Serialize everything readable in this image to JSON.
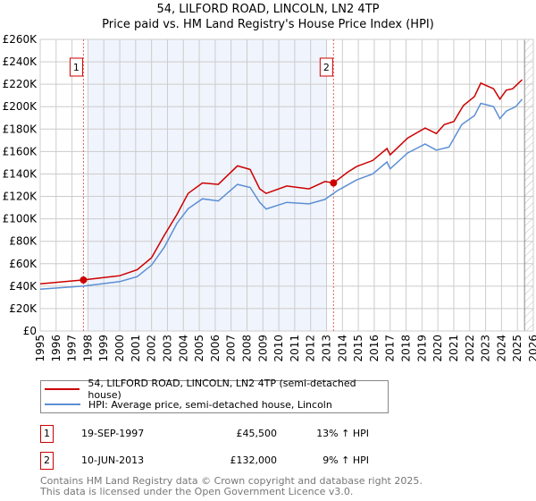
{
  "title": "54, LILFORD ROAD, LINCOLN, LN2 4TP",
  "subtitle": "Price paid vs. HM Land Registry's House Price Index (HPI)",
  "legend": [
    {
      "label": "54, LILFORD ROAD, LINCOLN, LN2 4TP (semi-detached house)",
      "color": "#cc0000"
    },
    {
      "label": "HPI: Average price, semi-detached house, Lincoln",
      "color": "#5b8fd4"
    }
  ],
  "transactions": [
    {
      "num": "1",
      "date": "19-SEP-1997",
      "price": "£45,500",
      "hpi": "13% ↑ HPI"
    },
    {
      "num": "2",
      "date": "10-JUN-2013",
      "price": "£132,000",
      "hpi": "9% ↑ HPI"
    }
  ],
  "footer": [
    "Contains HM Land Registry data © Crown copyright and database right 2025.",
    "This data is licensed under the Open Government Licence v3.0."
  ],
  "chart_data": {
    "type": "line",
    "xlim": [
      1995,
      2026
    ],
    "ylim": [
      0,
      260000
    ],
    "xticks": [
      "1995",
      "1996",
      "1997",
      "1998",
      "1999",
      "2000",
      "2001",
      "2002",
      "2003",
      "2004",
      "2005",
      "2006",
      "2007",
      "2008",
      "2009",
      "2010",
      "2011",
      "2012",
      "2013",
      "2014",
      "2015",
      "2016",
      "2017",
      "2018",
      "2019",
      "2020",
      "2021",
      "2022",
      "2023",
      "2024",
      "2025",
      "2026"
    ],
    "yticks": [
      {
        "v": 0,
        "label": "£0"
      },
      {
        "v": 20000,
        "label": "£20K"
      },
      {
        "v": 40000,
        "label": "£40K"
      },
      {
        "v": 60000,
        "label": "£60K"
      },
      {
        "v": 80000,
        "label": "£80K"
      },
      {
        "v": 100000,
        "label": "£100K"
      },
      {
        "v": 120000,
        "label": "£120K"
      },
      {
        "v": 140000,
        "label": "£140K"
      },
      {
        "v": 160000,
        "label": "£160K"
      },
      {
        "v": 180000,
        "label": "£180K"
      },
      {
        "v": 200000,
        "label": "£200K"
      },
      {
        "v": 220000,
        "label": "£220K"
      },
      {
        "v": 240000,
        "label": "£240K"
      },
      {
        "v": 260000,
        "label": "£260K"
      }
    ],
    "shaded_range": [
      1998.0,
      2013.0
    ],
    "hatched_from": 2025.45,
    "series": [
      {
        "name": "54, LILFORD ROAD, LINCOLN, LN2 4TP (semi-detached house)",
        "color": "#cc0000",
        "x": [
          1995.0,
          1997.72,
          2000.0,
          2001.1,
          2002.0,
          2002.8,
          2003.6,
          2004.3,
          2005.2,
          2006.2,
          2007.4,
          2008.2,
          2008.8,
          2009.2,
          2010.5,
          2011.9,
          2012.9,
          2013.44,
          2014.3,
          2014.9,
          2015.9,
          2016.8,
          2017.0,
          2018.1,
          2019.2,
          2019.9,
          2020.4,
          2021.0,
          2021.6,
          2022.3,
          2022.7,
          2023.5,
          2023.9,
          2024.3,
          2024.7,
          2025.3
        ],
        "y": [
          42000,
          45500,
          49300,
          54700,
          65300,
          85300,
          104000,
          122700,
          132000,
          130700,
          147200,
          144000,
          126700,
          122700,
          129300,
          126700,
          133300,
          132000,
          141300,
          146700,
          152000,
          162700,
          157000,
          172000,
          181000,
          176000,
          184000,
          186700,
          201000,
          209000,
          221000,
          216000,
          206700,
          214700,
          216000,
          224000
        ]
      },
      {
        "name": "HPI: Average price, semi-detached house, Lincoln",
        "color": "#5b8fd4",
        "x": [
          1995.0,
          1997.72,
          2000.0,
          2001.1,
          2002.0,
          2002.8,
          2003.6,
          2004.3,
          2005.2,
          2006.2,
          2007.4,
          2008.2,
          2008.8,
          2009.2,
          2010.5,
          2011.9,
          2012.9,
          2013.7,
          2014.9,
          2015.9,
          2016.8,
          2017.0,
          2018.1,
          2019.2,
          2019.9,
          2020.7,
          2021.5,
          2022.3,
          2022.7,
          2023.5,
          2023.9,
          2024.3,
          2024.9,
          2025.3
        ],
        "y": [
          37300,
          40000,
          44000,
          48500,
          58700,
          74700,
          96000,
          109000,
          117900,
          116000,
          130700,
          128000,
          114700,
          108800,
          114700,
          113300,
          117300,
          125300,
          134700,
          140000,
          150700,
          144500,
          158700,
          166700,
          161300,
          164000,
          184000,
          192000,
          203000,
          200000,
          189300,
          196000,
          200000,
          206700
        ]
      }
    ],
    "markers": [
      {
        "label": "1",
        "x": 1997.72,
        "y": 45500
      },
      {
        "label": "2",
        "x": 2013.44,
        "y": 132000
      }
    ]
  }
}
